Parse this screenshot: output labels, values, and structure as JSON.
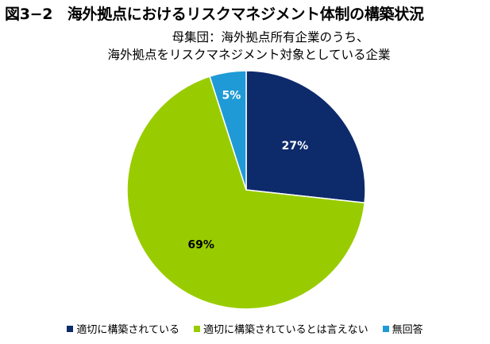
{
  "chart_data": {
    "type": "pie",
    "title": "図3−2　海外拠点におけるリスクマネジメント体制の構築状況",
    "subtitle_lines": [
      "母集団：海外拠点所有企業のうち、",
      "海外拠点をリスクマネジメント対象としている企業"
    ],
    "slices": [
      {
        "label": "適切に構築されている",
        "value": 27,
        "display": "27%",
        "color": "#0d2a6b",
        "label_color": "#ffffff"
      },
      {
        "label": "適切に構築されているとは言えない",
        "value": 69,
        "display": "69%",
        "color": "#99cc00",
        "label_color": "#000000"
      },
      {
        "label": "無回答",
        "value": 5,
        "display": "5%",
        "color": "#1f9ad6",
        "label_color": "#ffffff"
      }
    ],
    "legend_position": "bottom",
    "start_angle": "12 o'clock, clockwise"
  }
}
